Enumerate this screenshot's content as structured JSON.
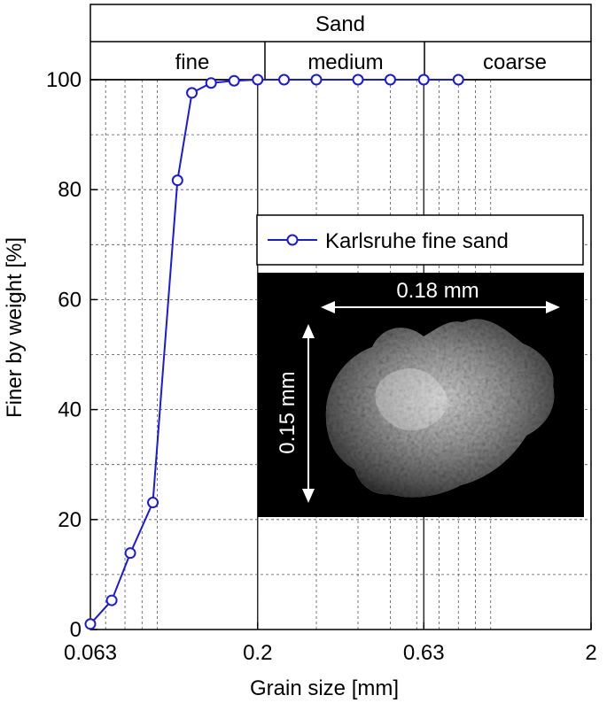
{
  "chart_data": {
    "type": "line",
    "xlabel": "Grain size [mm]",
    "ylabel": "Finer by weight [%]",
    "x_scale": "log",
    "xlim": [
      0.063,
      2
    ],
    "ylim": [
      0,
      100
    ],
    "x_ticks": [
      0.063,
      0.2,
      0.63,
      2
    ],
    "x_tick_labels": [
      "0.063",
      "0.2",
      "0.63",
      "2"
    ],
    "y_ticks": [
      0,
      20,
      40,
      60,
      80,
      100
    ],
    "y_tick_labels": [
      "0",
      "20",
      "40",
      "60",
      "80",
      "100"
    ],
    "grid": true,
    "legend_position": "center-right",
    "series": [
      {
        "name": "Karlsruhe fine sand",
        "color": "#1a1adc",
        "marker": "open-circle",
        "x": [
          0.063,
          0.073,
          0.083,
          0.097,
          0.115,
          0.127,
          0.145,
          0.17,
          0.2,
          0.24,
          0.3,
          0.4,
          0.5,
          0.63,
          0.8
        ],
        "y": [
          1.0,
          5.3,
          13.9,
          23.1,
          81.7,
          97.6,
          99.4,
          99.8,
          100,
          100,
          100,
          100,
          100,
          100,
          100
        ]
      }
    ],
    "header": {
      "title": "Sand",
      "subdivisions": [
        "fine",
        "medium",
        "coarse"
      ]
    },
    "inset_image": {
      "description_labels": [
        "0.18 mm",
        "0.15 mm"
      ]
    }
  },
  "colors": {
    "series": "#1a1adc",
    "grid": "#555555",
    "inset_background": "#000000"
  }
}
